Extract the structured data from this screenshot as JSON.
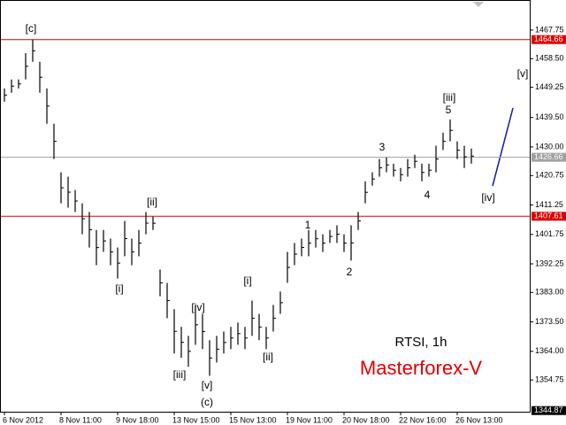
{
  "chart_data": {
    "type": "range_bar",
    "categories": [
      "6 Nov 2012",
      null,
      null,
      null,
      null,
      null,
      null,
      null,
      "8 Nov 11:00",
      null,
      null,
      null,
      null,
      null,
      null,
      null,
      "9 Nov 18:00",
      null,
      null,
      null,
      null,
      null,
      null,
      null,
      "13 Nov 15:00",
      null,
      null,
      null,
      null,
      null,
      null,
      null,
      "15 Nov 13:00",
      null,
      null,
      null,
      null,
      null,
      null,
      null,
      "19 Nov 11:00",
      null,
      null,
      null,
      null,
      null,
      null,
      null,
      "20 Nov 18:00",
      null,
      null,
      null,
      null,
      null,
      null,
      null,
      "22 Nov 16:00",
      null,
      null,
      null,
      null,
      null,
      null,
      null,
      "26 Nov 13:00",
      null,
      null
    ],
    "series": [
      {
        "name": "High",
        "color": "#000000",
        "values": [
          1448.9,
          1451.8,
          1451.8,
          1460.3,
          1464.6,
          1457.5,
          1448.9,
          1437.5,
          1421.8,
          1420.4,
          1416.1,
          1411.8,
          1409.0,
          1403.2,
          1403.2,
          1400.4,
          1397.5,
          1406.1,
          1400.4,
          1403.2,
          1409.0,
          1407.5,
          1390.4,
          1386.1,
          1377.6,
          1371.9,
          1369.0,
          1379.0,
          1376.1,
          1367.6,
          1369.0,
          1370.4,
          1371.9,
          1373.3,
          1371.9,
          1380.4,
          1376.1,
          1371.9,
          1379.0,
          1383.3,
          1396.1,
          1399.0,
          1400.4,
          1403.2,
          1403.2,
          1401.8,
          1403.2,
          1404.7,
          1401.8,
          1404.7,
          1409.0,
          1418.9,
          1421.8,
          1426.1,
          1426.6,
          1424.6,
          1423.2,
          1426.1,
          1427.5,
          1424.6,
          1424.6,
          1430.4,
          1434.6,
          1438.9,
          1431.8,
          1430.4,
          1429.5
        ]
      },
      {
        "name": "Low",
        "color": "#000000",
        "values": [
          1444.6,
          1447.5,
          1448.9,
          1451.8,
          1457.5,
          1447.5,
          1437.5,
          1426.1,
          1411.8,
          1410.4,
          1409.0,
          1401.8,
          1397.5,
          1391.8,
          1396.1,
          1391.8,
          1387.5,
          1394.7,
          1391.8,
          1394.7,
          1401.8,
          1403.2,
          1381.8,
          1374.7,
          1363.3,
          1361.9,
          1359.0,
          1366.1,
          1364.7,
          1356.1,
          1360.4,
          1363.3,
          1364.7,
          1366.1,
          1364.7,
          1369.0,
          1367.6,
          1364.7,
          1370.4,
          1376.1,
          1386.1,
          1391.8,
          1394.7,
          1394.7,
          1397.5,
          1396.1,
          1399.0,
          1399.0,
          1396.1,
          1393.3,
          1403.2,
          1411.8,
          1417.5,
          1420.4,
          1421.8,
          1420.4,
          1418.9,
          1420.4,
          1423.2,
          1418.9,
          1420.4,
          1421.8,
          1429.0,
          1431.8,
          1426.1,
          1423.2,
          1424.6
        ]
      }
    ],
    "ylim": [
      1344.5,
      1477.45
    ],
    "yticks": [
      {
        "value": 1467.75,
        "label": "1467.75"
      },
      {
        "value": 1458.5,
        "label": "1458.50"
      },
      {
        "value": 1449.25,
        "label": "1449.25"
      },
      {
        "value": 1439.5,
        "label": "1439.50"
      },
      {
        "value": 1430,
        "label": "1430.00"
      },
      {
        "value": 1420.75,
        "label": "1420.75"
      },
      {
        "value": 1411.25,
        "label": "1411.25"
      },
      {
        "value": 1401.75,
        "label": "1401.75"
      },
      {
        "value": 1392.25,
        "label": "1392.25"
      },
      {
        "value": 1383,
        "label": "1383.00"
      },
      {
        "value": 1373.5,
        "label": "1373.50"
      },
      {
        "value": 1364,
        "label": "1364.00"
      },
      {
        "value": 1354.75,
        "label": "1354.75"
      }
    ],
    "levels": [
      {
        "value": 1464.66,
        "color": "#e00000"
      },
      {
        "value": 1426.66,
        "color": "#a0a0a0"
      },
      {
        "value": 1407.61,
        "color": "#e00000"
      },
      {
        "value": 1344.87,
        "color": "#000000"
      }
    ],
    "annotations": [
      "[c]",
      "[ii]",
      "[i]",
      "[iv]",
      "[iii]",
      "[v]",
      "(c)",
      "[i]",
      "[ii]",
      "1",
      "2",
      "3",
      "4",
      "5",
      "[iii]",
      "[iv]",
      "[v]"
    ],
    "symbol": "RTSI, 1h",
    "watermark": "Masterforex-V"
  }
}
